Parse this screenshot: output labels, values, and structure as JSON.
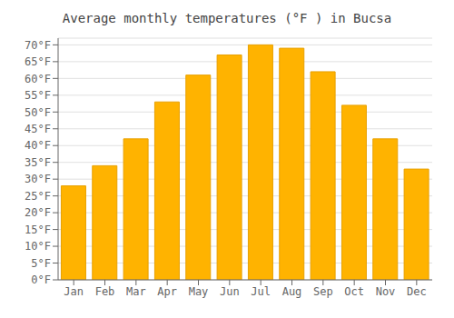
{
  "chart_data": {
    "type": "bar",
    "title": "Average monthly temperatures (°F ) in Bucsa",
    "categories": [
      "Jan",
      "Feb",
      "Mar",
      "Apr",
      "May",
      "Jun",
      "Jul",
      "Aug",
      "Sep",
      "Oct",
      "Nov",
      "Dec"
    ],
    "values": [
      28,
      34,
      42,
      53,
      61,
      67,
      70,
      69,
      62,
      52,
      42,
      33
    ],
    "color": "#FFB300",
    "ylim": [
      0,
      72
    ],
    "yticks": [
      {
        "value": 0,
        "label": "0°F"
      },
      {
        "value": 5,
        "label": "5°F"
      },
      {
        "value": 10,
        "label": "10°F"
      },
      {
        "value": 15,
        "label": "15°F"
      },
      {
        "value": 20,
        "label": "20°F"
      },
      {
        "value": 25,
        "label": "25°F"
      },
      {
        "value": 30,
        "label": "30°F"
      },
      {
        "value": 35,
        "label": "35°F"
      },
      {
        "value": 40,
        "label": "40°F"
      },
      {
        "value": 45,
        "label": "45°F"
      },
      {
        "value": 50,
        "label": "50°F"
      },
      {
        "value": 55,
        "label": "55°F"
      },
      {
        "value": 60,
        "label": "60°F"
      },
      {
        "value": 65,
        "label": "65°F"
      },
      {
        "value": 70,
        "label": "70°F"
      }
    ],
    "grid": true
  }
}
